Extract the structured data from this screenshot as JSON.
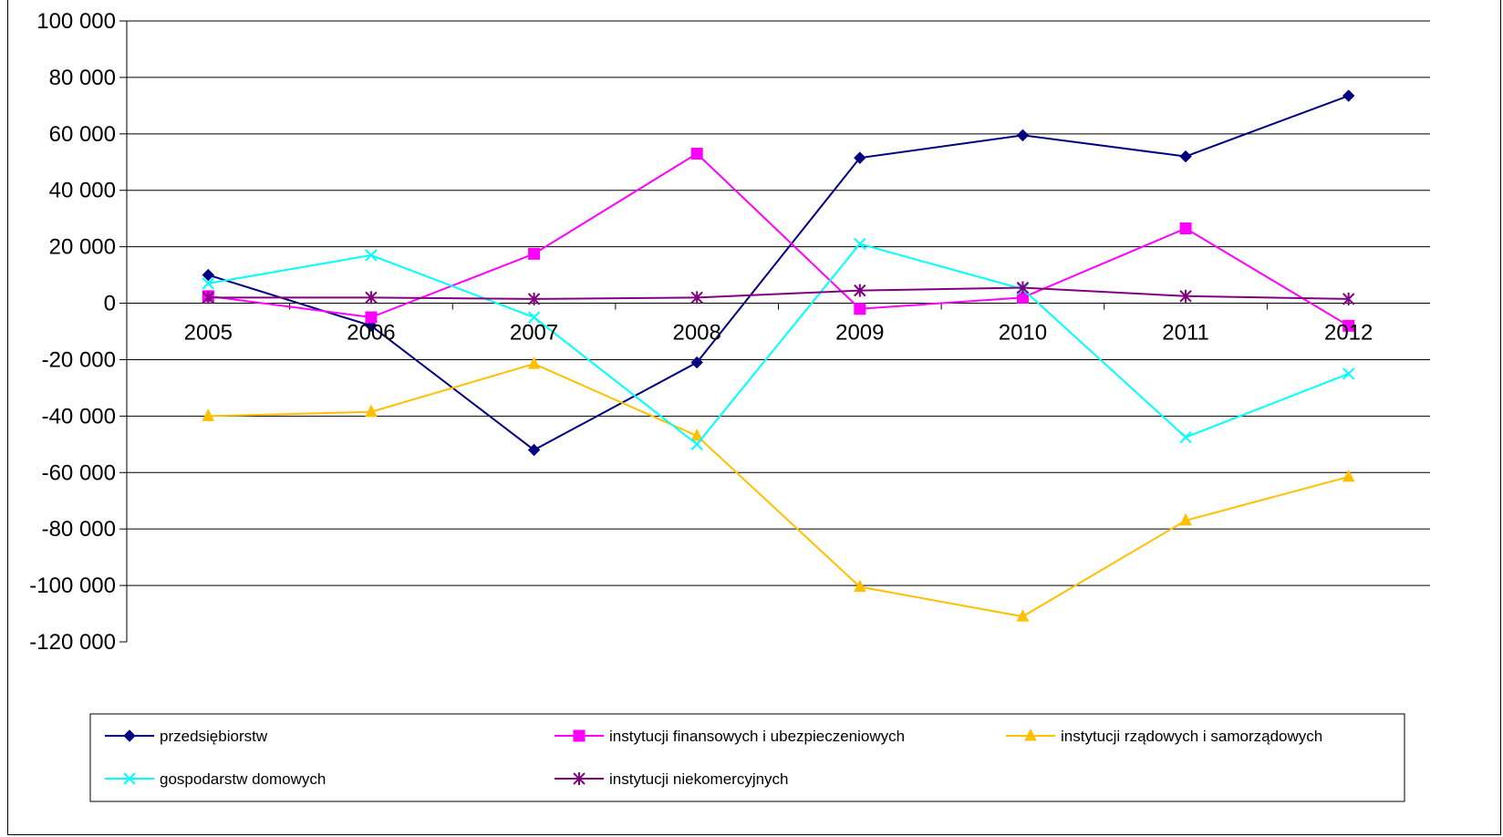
{
  "chart_data": {
    "type": "line",
    "title": "",
    "xlabel": "",
    "ylabel": "",
    "categories": [
      "2005",
      "2006",
      "2007",
      "2008",
      "2009",
      "2010",
      "2011",
      "2012"
    ],
    "ylim": [
      -120000,
      100000
    ],
    "yticks": [
      100000,
      80000,
      60000,
      40000,
      20000,
      0,
      -20000,
      -40000,
      -60000,
      -80000,
      -100000,
      -120000
    ],
    "ytick_labels": [
      "100 000",
      "80 000",
      "60 000",
      "40 000",
      "20 000",
      "0",
      "-20 000",
      "-40 000",
      "-60 000",
      "-80 000",
      "-100 000",
      "-120 000"
    ],
    "grid": true,
    "legend_position": "bottom",
    "series": [
      {
        "name": "przedsiębiorstw",
        "color": "#000080",
        "marker": "diamond",
        "values": [
          10000,
          -8000,
          -52000,
          -21000,
          51500,
          59500,
          52000,
          73500
        ]
      },
      {
        "name": "instytucji finansowych i ubezpieczeniowych",
        "color": "#FF00FF",
        "marker": "square",
        "values": [
          2500,
          -5000,
          17500,
          53000,
          -2000,
          2000,
          26500,
          -8000
        ]
      },
      {
        "name": "instytucji rządowych i samorządowych",
        "color": "#FFC000",
        "marker": "triangle",
        "values": [
          -40000,
          -38500,
          -21500,
          -47000,
          -100500,
          -111000,
          -77000,
          -61500
        ]
      },
      {
        "name": "gospodarstw domowych",
        "color": "#00FFFF",
        "marker": "x",
        "values": [
          7000,
          17000,
          -5000,
          -50000,
          21000,
          5000,
          -47500,
          -25000
        ]
      },
      {
        "name": "instytucji niekomercyjnych",
        "color": "#800080",
        "marker": "star",
        "values": [
          2000,
          2000,
          1500,
          2000,
          4500,
          5500,
          2500,
          1500
        ]
      }
    ]
  }
}
